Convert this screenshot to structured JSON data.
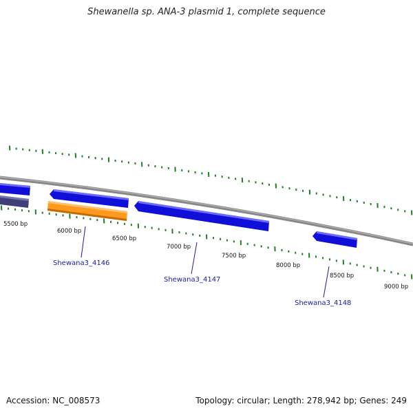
{
  "title": "Shewanella sp. ANA-3 plasmid 1, complete sequence",
  "footer": {
    "accession": "Accession: NC_008573",
    "topology": "Topology: circular; Length: 278,942 bp; Genes: 249"
  },
  "scale_labels": [
    "5500 bp",
    "6000 bp",
    "6500 bp",
    "7000 bp",
    "7500 bp",
    "8000 bp",
    "8500 bp",
    "9000 bp"
  ],
  "gene_labels": [
    "Shewana3_4146",
    "Shewana3_4147",
    "Shewana3_4148"
  ],
  "colors": {
    "gene_forward": "#1010e0",
    "gene_highlight": "#ff9a1e",
    "gene_other": "#44447a",
    "backbone": "#888888",
    "ticks": "#1f7f1f",
    "label_text": "#1a1aa8"
  }
}
